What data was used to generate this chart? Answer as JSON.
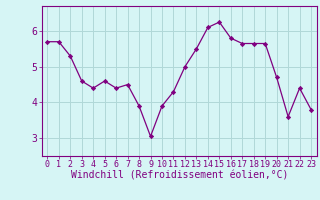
{
  "x": [
    0,
    1,
    2,
    3,
    4,
    5,
    6,
    7,
    8,
    9,
    10,
    11,
    12,
    13,
    14,
    15,
    16,
    17,
    18,
    19,
    20,
    21,
    22,
    23
  ],
  "y": [
    5.7,
    5.7,
    5.3,
    4.6,
    4.4,
    4.6,
    4.4,
    4.5,
    3.9,
    3.05,
    3.9,
    4.3,
    5.0,
    5.5,
    6.1,
    6.25,
    5.8,
    5.65,
    5.65,
    5.65,
    4.7,
    3.6,
    4.4,
    3.8
  ],
  "line_color": "#800080",
  "marker": "D",
  "marker_size": 2.2,
  "bg_color": "#d6f5f5",
  "grid_color": "#b0d8d8",
  "xlabel": "Windchill (Refroidissement éolien,°C)",
  "xlim": [
    -0.5,
    23.5
  ],
  "ylim": [
    2.5,
    6.7
  ],
  "yticks": [
    3,
    4,
    5,
    6
  ],
  "xticks": [
    0,
    1,
    2,
    3,
    4,
    5,
    6,
    7,
    8,
    9,
    10,
    11,
    12,
    13,
    14,
    15,
    16,
    17,
    18,
    19,
    20,
    21,
    22,
    23
  ],
  "tick_labelsize": 6.0,
  "xlabel_fontsize": 7.0,
  "axis_color": "#800080",
  "linewidth": 0.9
}
